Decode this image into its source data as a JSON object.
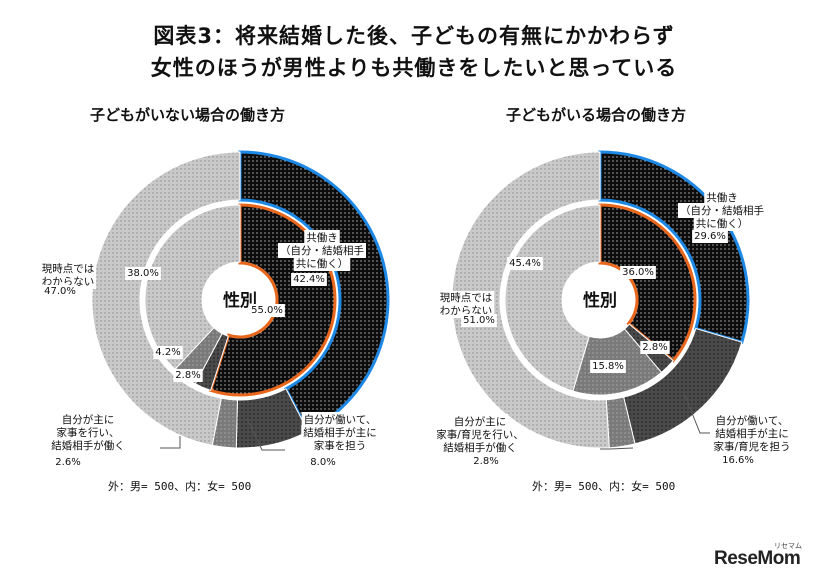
{
  "title": {
    "line1": "図表3：将来結婚した後、子どもの有無にかかわらず",
    "line2": "女性のほうが男性よりも共働きをしたいと思っている"
  },
  "chart_data": [
    {
      "type": "pie",
      "variant": "double-donut",
      "title": "子どもがいない場合の働き方",
      "center_label": "性別",
      "note": "外：男= 500、内：女= 500",
      "categories": [
        "共働き（自分・結婚相手共に働く）",
        "自分が働いて、結婚相手が主に家事を担う",
        "自分が主に家事を行い、結婚相手が働く",
        "現時点ではわからない"
      ],
      "series": [
        {
          "name": "外：男",
          "values": [
            42.4,
            8.0,
            2.6,
            47.0
          ]
        },
        {
          "name": "内：女",
          "values": [
            55.0,
            2.8,
            4.2,
            38.0
          ]
        }
      ],
      "labels": {
        "outer": [
          "42.4%",
          "8.0%",
          "2.6%",
          "47.0%"
        ],
        "inner": [
          "55.0%",
          "2.8%",
          "4.2%",
          "38.0%"
        ]
      },
      "category_label_lines": [
        [
          "共働き",
          "（自分・結婚相手",
          "共に働く）"
        ],
        [
          "自分が働いて、",
          "結婚相手が主に",
          "家事を担う"
        ],
        [
          "自分が主に",
          "家事を行い、",
          "結婚相手が働く"
        ],
        [
          "現時点では",
          "わからない"
        ]
      ]
    },
    {
      "type": "pie",
      "variant": "double-donut",
      "title": "子どもがいる場合の働き方",
      "center_label": "性別",
      "note": "外：男= 500、内：女= 500",
      "categories": [
        "共働き（自分・結婚相手共に働く）",
        "自分が働いて、結婚相手が主に家事/育児を担う",
        "自分が主に家事/育児を行い、結婚相手が働く",
        "現時点ではわからない"
      ],
      "series": [
        {
          "name": "外：男",
          "values": [
            29.6,
            16.6,
            2.8,
            51.0
          ]
        },
        {
          "name": "内：女",
          "values": [
            36.0,
            2.8,
            15.8,
            45.4
          ]
        }
      ],
      "labels": {
        "outer": [
          "29.6%",
          "16.6%",
          "2.8%",
          "51.0%"
        ],
        "inner": [
          "36.0%",
          "2.8%",
          "15.8%",
          "45.4%"
        ]
      },
      "category_label_lines": [
        [
          "共働き",
          "（自分・結婚相手",
          "共に働く）"
        ],
        [
          "自分が働いて、",
          "結婚相手が主に",
          "家事/育児を担う"
        ],
        [
          "自分が主に",
          "家事/育児を行い、",
          "結婚相手が働く"
        ],
        [
          "現時点では",
          "わからない"
        ]
      ]
    }
  ],
  "brand": {
    "name": "ReseMom",
    "reading": "リセマム"
  }
}
